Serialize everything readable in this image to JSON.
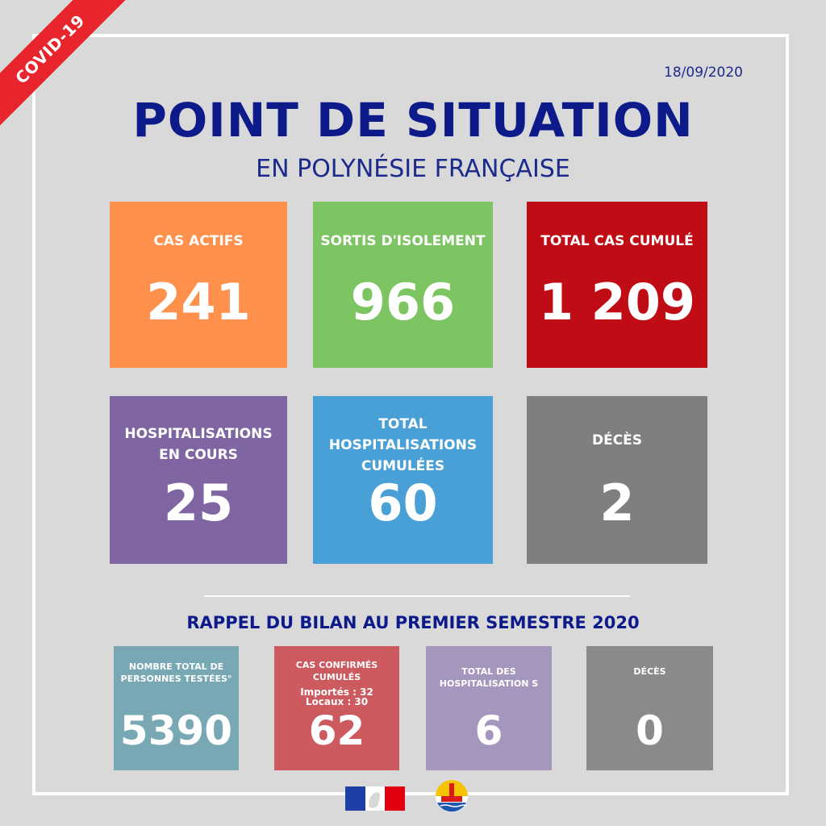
{
  "ribbon": "COVID-19",
  "date": "18/09/2020",
  "title": "POINT DE SITUATION",
  "subtitle": "EN POLYNÉSIE FRANÇAISE",
  "colors": {
    "background": "#d9d9d9",
    "orange": "#ff914d",
    "green": "#7dc462",
    "red": "#c00c15",
    "purple": "#7f66a3",
    "blue": "#48a0d6",
    "gray": "#7f7f7f",
    "teal": "#77a8b4",
    "rose": "#cc5a5e",
    "lavender": "#a596bd",
    "gray_light": "#8a8a8a",
    "navy": "#0d1a8a"
  },
  "main_stats": [
    {
      "label": "CAS ACTIFS",
      "value": "241"
    },
    {
      "label": "SORTIS D'ISOLEMENT",
      "value": "966"
    },
    {
      "label": "TOTAL CAS CUMULÉ",
      "value": "1 209"
    },
    {
      "label_lines": [
        "HOSPITALISATIONS",
        "EN COURS"
      ],
      "value": "25"
    },
    {
      "label_lines": [
        "TOTAL",
        "HOSPITALISATIONS",
        "CUMULÉES"
      ],
      "value": "60"
    },
    {
      "label": "DÉCÈS",
      "value": "2"
    }
  ],
  "semester": {
    "title": "RAPPEL DU BILAN AU PREMIER SEMESTRE 2020",
    "stats": [
      {
        "label_lines": [
          "NOMBRE TOTAL DE",
          "PERSONNES TESTÉES°"
        ],
        "value": "5390"
      },
      {
        "label_lines": [
          "CAS CONFIRMÉS",
          "CUMULÉS"
        ],
        "details": [
          "Importés : 32",
          "Locaux : 30"
        ],
        "value": "62"
      },
      {
        "label_lines": [
          "TOTAL DES",
          "HOSPITALISATION S"
        ],
        "value": "6"
      },
      {
        "label": "DÉCÈS",
        "value": "0"
      }
    ]
  },
  "logos": [
    "republique-francaise-logo",
    "polynesie-francaise-emblem"
  ]
}
